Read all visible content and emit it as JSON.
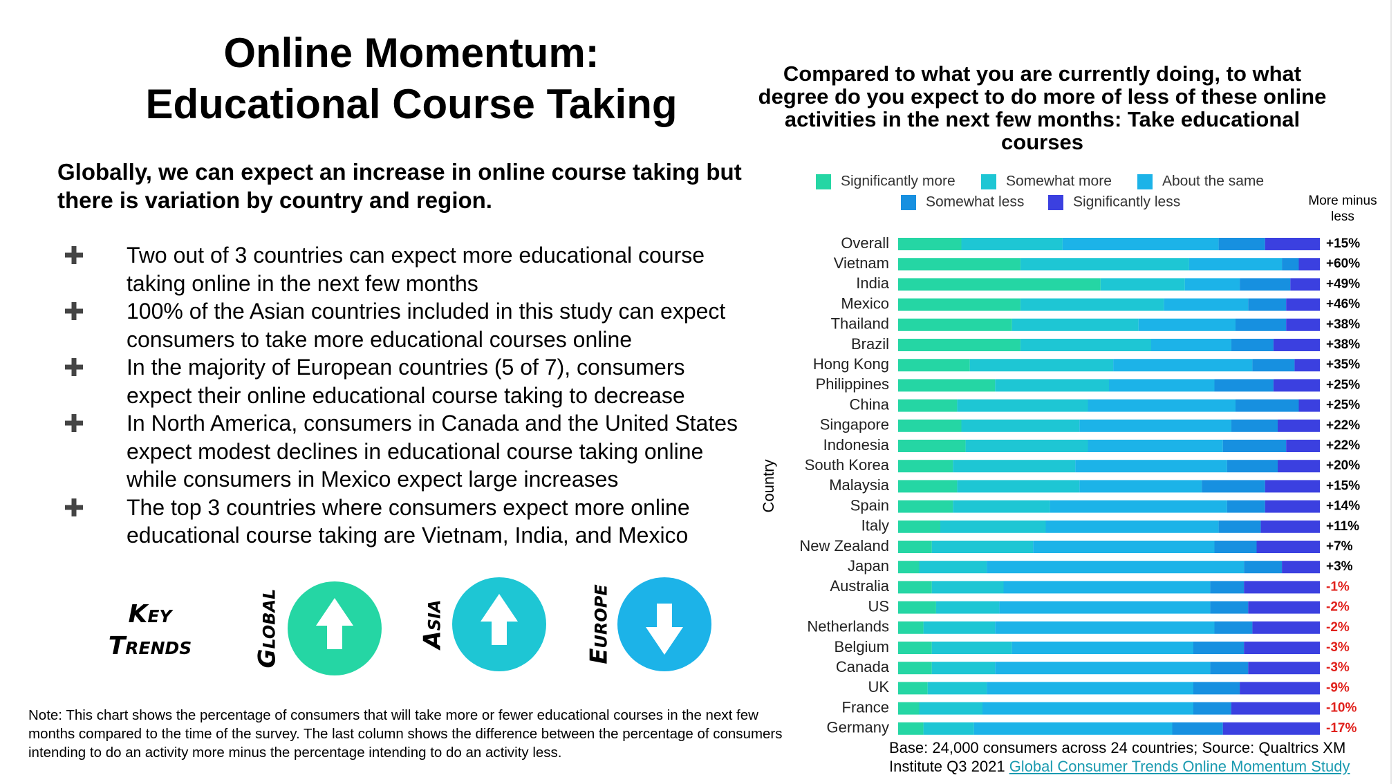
{
  "header": {
    "title_lines": [
      "Online Momentum:",
      "Educational Course Taking"
    ],
    "subtitle": "Globally, we can expect an increase in online course taking but there is variation by country and region."
  },
  "bullets": [
    "Two out of 3 countries can expect more educational course taking online in the next few months",
    "100% of the Asian countries included in this study can expect consumers to take more educational courses online",
    "In the majority of European countries (5 of 7), consumers expect their online educational course taking to decrease",
    "In North America, consumers in Canada and the United States expect modest declines in educational course taking online while consumers in Mexico expect large increases",
    "The top 3 countries where consumers expect more online educational course taking are Vietnam, India, and Mexico"
  ],
  "key_trends": {
    "title": "Key Trends",
    "items": [
      {
        "label": "Global",
        "direction": "up",
        "color": "#25d6a4"
      },
      {
        "label": "Asia",
        "direction": "up",
        "color": "#1ec6d4"
      },
      {
        "label": "Europe",
        "direction": "down",
        "color": "#1cb3e8"
      }
    ]
  },
  "note": "Note: This chart shows the percentage of consumers that will take more or fewer educational courses in the next few months compared to the time of the survey. The last column shows the difference between the percentage of consumers intending to do an activity more minus the percentage intending to do an activity less.",
  "source": {
    "text": "Base: 24,000 consumers across 24 countries; Source: Qualtrics XM Institute Q3 2021",
    "link": "Global Consumer Trends Online Momentum Study"
  },
  "chart_data": {
    "type": "bar",
    "orientation": "horizontal",
    "stacked": true,
    "title": "Compared to what you are currently doing, to what degree do you expect to do more of less of these online activities in the next few months: Take educational courses",
    "y_label": "Country",
    "categories": [
      "Overall",
      "Vietnam",
      "India",
      "Mexico",
      "Thailand",
      "Brazil",
      "Hong Kong",
      "Philippines",
      "China",
      "Singapore",
      "Indonesia",
      "South Korea",
      "Malaysia",
      "Spain",
      "Italy",
      "New Zealand",
      "Japan",
      "Australia",
      "US",
      "Netherlands",
      "Belgium",
      "Canada",
      "UK",
      "France",
      "Germany"
    ],
    "xlim": [
      0,
      100
    ],
    "series": [
      {
        "name": "Significantly more",
        "color": "#25d6a4",
        "values": [
          15,
          29,
          48,
          29,
          27,
          29,
          17,
          23,
          14,
          15,
          16,
          13,
          14,
          13,
          10,
          8,
          5,
          8,
          9,
          6,
          8,
          8,
          7,
          5,
          6
        ]
      },
      {
        "name": "Somewhat more",
        "color": "#1ec6d4",
        "values": [
          24,
          40,
          20,
          34,
          30,
          31,
          34,
          27,
          31,
          28,
          29,
          29,
          29,
          23,
          25,
          24,
          16,
          17,
          15,
          17,
          19,
          15,
          14,
          15,
          12
        ]
      },
      {
        "name": "About the same",
        "color": "#1cb3e8",
        "values": [
          37,
          22,
          13,
          20,
          23,
          19,
          33,
          25,
          35,
          36,
          32,
          36,
          29,
          42,
          41,
          43,
          61,
          49,
          50,
          52,
          43,
          51,
          49,
          50,
          47
        ]
      },
      {
        "name": "Somewhat less",
        "color": "#1790e0",
        "values": [
          11,
          4,
          12,
          9,
          12,
          10,
          10,
          14,
          15,
          11,
          15,
          12,
          15,
          9,
          10,
          10,
          9,
          8,
          9,
          9,
          12,
          9,
          11,
          9,
          12
        ]
      },
      {
        "name": "Significantly less",
        "color": "#3b40e0",
        "values": [
          13,
          5,
          7,
          8,
          8,
          11,
          6,
          11,
          5,
          10,
          8,
          10,
          13,
          13,
          14,
          15,
          9,
          18,
          17,
          16,
          18,
          17,
          19,
          21,
          23
        ]
      }
    ],
    "net": {
      "name": "More minus less",
      "values": [
        15,
        60,
        49,
        46,
        38,
        38,
        35,
        25,
        25,
        22,
        22,
        20,
        15,
        14,
        11,
        7,
        3,
        -1,
        -2,
        -2,
        -3,
        -3,
        -9,
        -10,
        -17
      ],
      "value_labels": [
        "+15%",
        "+60%",
        "+49%",
        "+46%",
        "+38%",
        "+38%",
        "+35%",
        "+25%",
        "+25%",
        "+22%",
        "+22%",
        "+20%",
        "+15%",
        "+14%",
        "+11%",
        "+7%",
        "+3%",
        "-1%",
        "-2%",
        "-2%",
        "-3%",
        "-3%",
        "-9%",
        "-10%",
        "-17%"
      ],
      "positive_color": "#000000",
      "negative_color": "#e0201b"
    },
    "legend": "top"
  }
}
